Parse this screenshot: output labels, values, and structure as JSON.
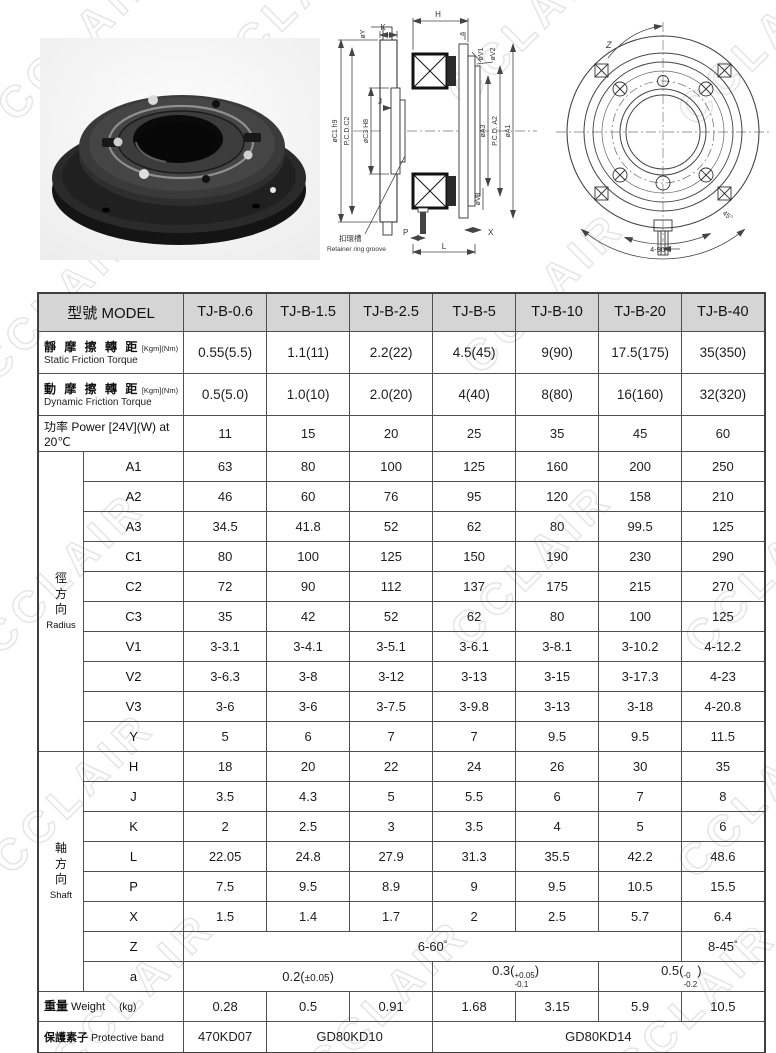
{
  "watermark": {
    "text": "CCLAIR"
  },
  "colors": {
    "header_bg": "#d5d5d5",
    "border": "#4f4f4f"
  },
  "section_drawing": {
    "h": "H",
    "k": "K",
    "oy": "øY",
    "a": "a",
    "ov1": "øV1",
    "ov2": "øV2",
    "oc1h9": "øC1 h9",
    "pcdc2": "P.C.D.C2",
    "oc3h8": "øC3 H8",
    "j": "J",
    "oa3": "øA3",
    "pcda2": "P.C.D. A2",
    "oa1": "øA1",
    "ov3": "øV3",
    "x": "X",
    "p": "P",
    "l": "L",
    "retainer_zh": "扣環槽",
    "retainer_en": "Retainer ring groove"
  },
  "front_drawing": {
    "z": "Z",
    "deg45": "45°",
    "deg490": "4-90°"
  },
  "table": {
    "model_header": "型號 MODEL",
    "models": [
      "TJ-B-0.6",
      "TJ-B-1.5",
      "TJ-B-2.5",
      "TJ-B-5",
      "TJ-B-10",
      "TJ-B-20",
      "TJ-B-40"
    ],
    "torque_rows": [
      {
        "zh": "靜 摩 擦 轉 距",
        "unit": "[Kgm](Nm)",
        "en": "Static Friction Torque",
        "values": [
          "0.55(5.5)",
          "1.1(11)",
          "2.2(22)",
          "4.5(45)",
          "9(90)",
          "17.5(175)",
          "35(350)"
        ]
      },
      {
        "zh": "動 摩 擦 轉 距",
        "unit": "[Kgm](Nm)",
        "en": "Dynamic Friction Torque",
        "values": [
          "0.5(5.0)",
          "1.0(10)",
          "2.0(20)",
          "4(40)",
          "8(80)",
          "16(160)",
          "32(320)"
        ]
      }
    ],
    "power_row": {
      "label": "功率 Power [24V](W) at 20℃",
      "values": [
        "11",
        "15",
        "20",
        "25",
        "35",
        "45",
        "60"
      ]
    },
    "groups": [
      {
        "zh": "徑方向",
        "en": "Radius",
        "rows": [
          {
            "param": "A1",
            "values": [
              "63",
              "80",
              "100",
              "125",
              "160",
              "200",
              "250"
            ]
          },
          {
            "param": "A2",
            "values": [
              "46",
              "60",
              "76",
              "95",
              "120",
              "158",
              "210"
            ]
          },
          {
            "param": "A3",
            "values": [
              "34.5",
              "41.8",
              "52",
              "62",
              "80",
              "99.5",
              "125"
            ],
            "dashed_bottom": true
          },
          {
            "param": "C1",
            "values": [
              "80",
              "100",
              "125",
              "150",
              "190",
              "230",
              "290"
            ]
          },
          {
            "param": "C2",
            "values": [
              "72",
              "90",
              "112",
              "137",
              "175",
              "215",
              "270"
            ]
          },
          {
            "param": "C3",
            "values": [
              "35",
              "42",
              "52",
              "62",
              "80",
              "100",
              "125"
            ]
          },
          {
            "param": "V1",
            "values": [
              "3-3.1",
              "3-4.1",
              "3-5.1",
              "3-6.1",
              "3-8.1",
              "3-10.2",
              "4-12.2"
            ]
          },
          {
            "param": "V2",
            "values": [
              "3-6.3",
              "3-8",
              "3-12",
              "3-13",
              "3-15",
              "3-17.3",
              "4-23"
            ]
          },
          {
            "param": "V3",
            "values": [
              "3-6",
              "3-6",
              "3-7.5",
              "3-9.8",
              "3-13",
              "3-18",
              "4-20.8"
            ]
          },
          {
            "param": "Y",
            "values": [
              "5",
              "6",
              "7",
              "7",
              "9.5",
              "9.5",
              "11.5"
            ]
          }
        ]
      },
      {
        "zh": "軸方向",
        "en": "Shaft",
        "rows": [
          {
            "param": "H",
            "values": [
              "18",
              "20",
              "22",
              "24",
              "26",
              "30",
              "35"
            ]
          },
          {
            "param": "J",
            "values": [
              "3.5",
              "4.3",
              "5",
              "5.5",
              "6",
              "7",
              "8"
            ]
          },
          {
            "param": "K",
            "values": [
              "2",
              "2.5",
              "3",
              "3.5",
              "4",
              "5",
              "6"
            ]
          },
          {
            "param": "L",
            "values": [
              "22.05",
              "24.8",
              "27.9",
              "31.3",
              "35.5",
              "42.2",
              "48.6"
            ]
          },
          {
            "param": "P",
            "values": [
              "7.5",
              "9.5",
              "8.9",
              "9",
              "9.5",
              "10.5",
              "15.5"
            ]
          },
          {
            "param": "X",
            "values": [
              "1.5",
              "1.4",
              "1.7",
              "2",
              "2.5",
              "5.7",
              "6.4"
            ]
          },
          {
            "param": "Z",
            "cells": [
              {
                "span": 6,
                "text": "6-60",
                "sup": "°"
              },
              {
                "span": 1,
                "text": "8-45",
                "sup": "°"
              }
            ]
          },
          {
            "param": "a",
            "cells": [
              {
                "span": 3,
                "text": "0.2(",
                "small": "±0.05",
                "close": ")"
              },
              {
                "span": 2,
                "text": "0.3(",
                "tol_sup": "+0.05",
                "tol_sub": "-0.1",
                "close": ")"
              },
              {
                "span": 2,
                "text": "0.5(",
                "tol_sup": "-0",
                "tol_sub": "-0.2",
                "close": ")"
              }
            ]
          }
        ]
      }
    ],
    "weight_row": {
      "zh": "重量",
      "en": "Weight",
      "unit": "(kg)",
      "values": [
        "0.28",
        "0.5",
        "0.91",
        "1.68",
        "3.15",
        "5.9",
        "10.5"
      ]
    },
    "protective_row": {
      "zh": "保護素子",
      "en": "Protective band",
      "cells": [
        {
          "span": 1,
          "text": "470KD07"
        },
        {
          "span": 2,
          "text": "GD80KD10"
        },
        {
          "span": 4,
          "text": "GD80KD14"
        }
      ]
    }
  }
}
